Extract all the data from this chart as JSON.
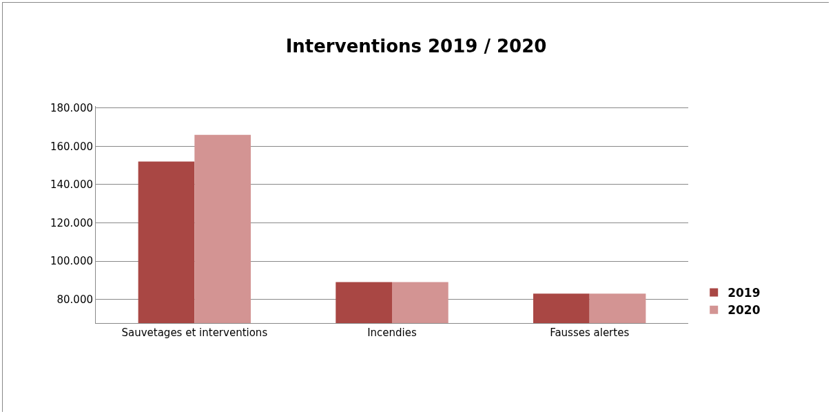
{
  "chart_data": {
    "type": "bar",
    "title": "Interventions 2019 / 2020",
    "categories": [
      "Sauvetages et interventions",
      "Incendies",
      "Fausses alertes"
    ],
    "series": [
      {
        "name": "2019",
        "color": "#a94744",
        "values": [
          152000,
          89000,
          83000
        ]
      },
      {
        "name": "2020",
        "color": "#d39493",
        "values": [
          166000,
          89000,
          83000
        ]
      }
    ],
    "ylim": [
      67600,
      181000
    ],
    "yticks": [
      {
        "value": 80000,
        "label": "80.000"
      },
      {
        "value": 100000,
        "label": "100.000"
      },
      {
        "value": 120000,
        "label": "120.000"
      },
      {
        "value": 140000,
        "label": "140.000"
      },
      {
        "value": 160000,
        "label": "160.000"
      },
      {
        "value": 180000,
        "label": "180.000"
      }
    ],
    "grid": "y",
    "legend": "right"
  }
}
